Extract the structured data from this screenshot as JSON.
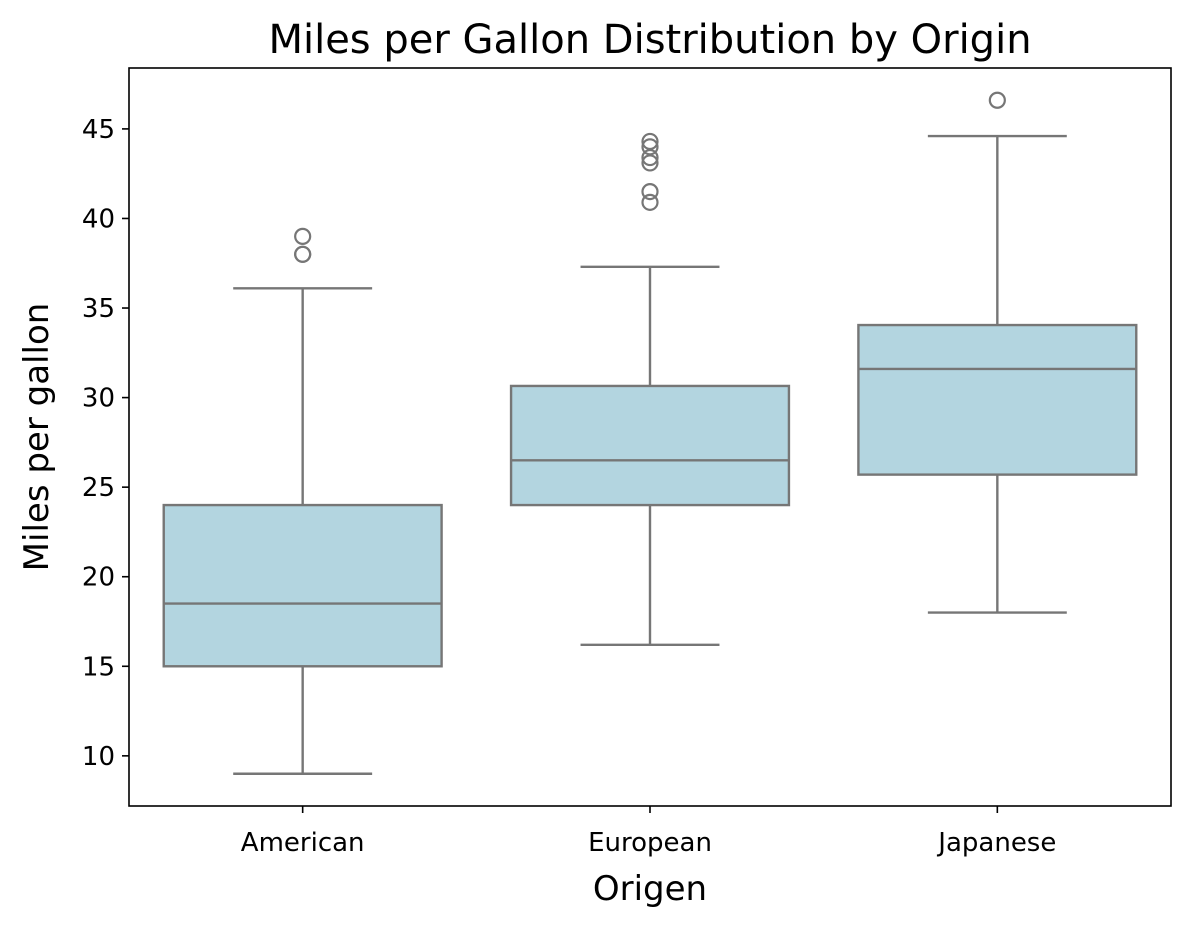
{
  "chart_data": {
    "type": "box",
    "title": "Miles per Gallon Distribution by Origin",
    "xlabel": "Origen",
    "ylabel": "Miles per gallon",
    "ylim": [
      7.2,
      48.4
    ],
    "yticks": [
      10,
      15,
      20,
      25,
      30,
      35,
      40,
      45
    ],
    "categories": [
      "American",
      "European",
      "Japanese"
    ],
    "boxes": [
      {
        "category": "American",
        "whisker_low": 9.0,
        "q1": 15.0,
        "median": 18.5,
        "q3": 24.0,
        "whisker_high": 36.1,
        "outliers": [
          39.0,
          38.0,
          38.0
        ]
      },
      {
        "category": "European",
        "whisker_low": 16.2,
        "q1": 24.0,
        "median": 26.5,
        "q3": 30.65,
        "whisker_high": 37.3,
        "outliers": [
          44.3,
          44.0,
          43.4,
          43.1,
          41.5,
          40.9
        ]
      },
      {
        "category": "Japanese",
        "whisker_low": 18.0,
        "q1": 25.7,
        "median": 31.6,
        "q3": 34.05,
        "whisker_high": 44.6,
        "outliers": [
          46.6
        ]
      }
    ],
    "grid": false,
    "colors": {
      "box_fill": "#b3d5e0",
      "box_line": "#767676",
      "axis": "#000000"
    }
  }
}
